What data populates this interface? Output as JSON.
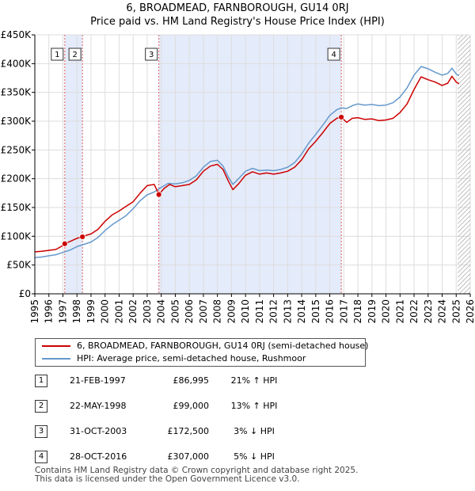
{
  "title": {
    "line1": "6, BROADMEAD, FARNBOROUGH, GU14 0RJ",
    "line2": "Price paid vs. HM Land Registry's House Price Index (HPI)"
  },
  "colors": {
    "price_line": "#cc0000",
    "hpi_line": "#6699cc",
    "shade": "#e4ebfa",
    "grid": "#dddddd",
    "marker_vline": "#e06060",
    "forecast_hatch": "#aaaaaa"
  },
  "chart_data": {
    "type": "line",
    "xlim": [
      1995,
      2026
    ],
    "ylim": [
      0,
      450000
    ],
    "x_ticks": [
      1995,
      1996,
      1997,
      1998,
      1999,
      2000,
      2001,
      2002,
      2003,
      2004,
      2005,
      2006,
      2007,
      2008,
      2009,
      2010,
      2011,
      2012,
      2013,
      2014,
      2015,
      2016,
      2017,
      2018,
      2019,
      2020,
      2021,
      2022,
      2023,
      2024,
      2025,
      2026
    ],
    "y_ticks": [
      {
        "value": 0,
        "label": "£0"
      },
      {
        "value": 50000,
        "label": "£50K"
      },
      {
        "value": 100000,
        "label": "£100K"
      },
      {
        "value": 150000,
        "label": "£150K"
      },
      {
        "value": 200000,
        "label": "£200K"
      },
      {
        "value": 250000,
        "label": "£250K"
      },
      {
        "value": 300000,
        "label": "£300K"
      },
      {
        "value": 350000,
        "label": "£350K"
      },
      {
        "value": 400000,
        "label": "£400K"
      },
      {
        "value": 450000,
        "label": "£450K"
      }
    ],
    "forecast_start": 2025.1,
    "shaded_spans": [
      [
        1997.13,
        1998.39
      ],
      [
        2003.83,
        2016.82
      ]
    ],
    "series": [
      {
        "name": "6, BROADMEAD, FARNBOROUGH, GU14 0RJ (semi-detached house)",
        "points": [
          [
            1995.0,
            73000
          ],
          [
            1995.5,
            74000
          ],
          [
            1996.0,
            75500
          ],
          [
            1996.5,
            77000
          ],
          [
            1997.0,
            84000
          ],
          [
            1997.13,
            86995
          ],
          [
            1997.5,
            91000
          ],
          [
            1998.0,
            96500
          ],
          [
            1998.39,
            99000
          ],
          [
            1998.7,
            102000
          ],
          [
            1999.0,
            104000
          ],
          [
            1999.5,
            112000
          ],
          [
            2000.0,
            126000
          ],
          [
            2000.5,
            137000
          ],
          [
            2001.0,
            144000
          ],
          [
            2001.5,
            152000
          ],
          [
            2002.0,
            160000
          ],
          [
            2002.5,
            175000
          ],
          [
            2003.0,
            188000
          ],
          [
            2003.5,
            190000
          ],
          [
            2003.83,
            172500
          ],
          [
            2004.2,
            183000
          ],
          [
            2004.6,
            190000
          ],
          [
            2005.0,
            186000
          ],
          [
            2005.5,
            188000
          ],
          [
            2006.0,
            190000
          ],
          [
            2006.5,
            198000
          ],
          [
            2007.0,
            213000
          ],
          [
            2007.5,
            222000
          ],
          [
            2008.0,
            225000
          ],
          [
            2008.4,
            216000
          ],
          [
            2008.8,
            195000
          ],
          [
            2009.1,
            181000
          ],
          [
            2009.5,
            191000
          ],
          [
            2010.0,
            206000
          ],
          [
            2010.5,
            212000
          ],
          [
            2011.0,
            208000
          ],
          [
            2011.5,
            210000
          ],
          [
            2012.0,
            208000
          ],
          [
            2012.5,
            210000
          ],
          [
            2013.0,
            213000
          ],
          [
            2013.5,
            220000
          ],
          [
            2014.0,
            233000
          ],
          [
            2014.5,
            252000
          ],
          [
            2015.0,
            265000
          ],
          [
            2015.5,
            280000
          ],
          [
            2016.0,
            296000
          ],
          [
            2016.5,
            305000
          ],
          [
            2016.82,
            307000
          ],
          [
            2017.2,
            298000
          ],
          [
            2017.6,
            305000
          ],
          [
            2018.0,
            306000
          ],
          [
            2018.5,
            303000
          ],
          [
            2019.0,
            304000
          ],
          [
            2019.5,
            301000
          ],
          [
            2020.0,
            302000
          ],
          [
            2020.5,
            305000
          ],
          [
            2021.0,
            315000
          ],
          [
            2021.5,
            330000
          ],
          [
            2022.0,
            355000
          ],
          [
            2022.5,
            377000
          ],
          [
            2023.0,
            372000
          ],
          [
            2023.5,
            368000
          ],
          [
            2024.0,
            362000
          ],
          [
            2024.4,
            366000
          ],
          [
            2024.7,
            378000
          ],
          [
            2025.0,
            368000
          ],
          [
            2025.2,
            365000
          ]
        ]
      },
      {
        "name": "HPI: Average price, semi-detached house, Rushmoor",
        "points": [
          [
            1995.0,
            63000
          ],
          [
            1995.5,
            64000
          ],
          [
            1996.0,
            66000
          ],
          [
            1996.5,
            68000
          ],
          [
            1997.0,
            72000
          ],
          [
            1997.5,
            76000
          ],
          [
            1998.0,
            82000
          ],
          [
            1998.5,
            86000
          ],
          [
            1999.0,
            90000
          ],
          [
            1999.5,
            98000
          ],
          [
            2000.0,
            110000
          ],
          [
            2000.5,
            120000
          ],
          [
            2001.0,
            128000
          ],
          [
            2001.5,
            136000
          ],
          [
            2002.0,
            148000
          ],
          [
            2002.5,
            162000
          ],
          [
            2003.0,
            172000
          ],
          [
            2003.5,
            177000
          ],
          [
            2004.0,
            185000
          ],
          [
            2004.5,
            192000
          ],
          [
            2005.0,
            191000
          ],
          [
            2005.5,
            193000
          ],
          [
            2006.0,
            197000
          ],
          [
            2006.5,
            205000
          ],
          [
            2007.0,
            220000
          ],
          [
            2007.5,
            230000
          ],
          [
            2008.0,
            232000
          ],
          [
            2008.4,
            222000
          ],
          [
            2008.8,
            202000
          ],
          [
            2009.1,
            190000
          ],
          [
            2009.5,
            200000
          ],
          [
            2010.0,
            213000
          ],
          [
            2010.5,
            218000
          ],
          [
            2011.0,
            214000
          ],
          [
            2011.5,
            215000
          ],
          [
            2012.0,
            214000
          ],
          [
            2012.5,
            216000
          ],
          [
            2013.0,
            220000
          ],
          [
            2013.5,
            228000
          ],
          [
            2014.0,
            243000
          ],
          [
            2014.5,
            262000
          ],
          [
            2015.0,
            277000
          ],
          [
            2015.5,
            293000
          ],
          [
            2016.0,
            310000
          ],
          [
            2016.5,
            320000
          ],
          [
            2016.82,
            323000
          ],
          [
            2017.2,
            322000
          ],
          [
            2017.6,
            327000
          ],
          [
            2018.0,
            330000
          ],
          [
            2018.5,
            328000
          ],
          [
            2019.0,
            329000
          ],
          [
            2019.5,
            327000
          ],
          [
            2020.0,
            328000
          ],
          [
            2020.5,
            332000
          ],
          [
            2021.0,
            342000
          ],
          [
            2021.5,
            358000
          ],
          [
            2022.0,
            380000
          ],
          [
            2022.5,
            395000
          ],
          [
            2023.0,
            391000
          ],
          [
            2023.5,
            385000
          ],
          [
            2024.0,
            380000
          ],
          [
            2024.4,
            383000
          ],
          [
            2024.7,
            392000
          ],
          [
            2025.0,
            382000
          ],
          [
            2025.2,
            379000
          ]
        ]
      }
    ],
    "sales": [
      {
        "num": "1",
        "x": 1997.13,
        "price": 86995
      },
      {
        "num": "2",
        "x": 1998.39,
        "price": 99000
      },
      {
        "num": "3",
        "x": 2003.83,
        "price": 172500
      },
      {
        "num": "4",
        "x": 2016.82,
        "price": 307000
      }
    ]
  },
  "legend": {
    "price_label": "6, BROADMEAD, FARNBOROUGH, GU14 0RJ (semi-detached house)",
    "hpi_label": "HPI: Average price, semi-detached house, Rushmoor"
  },
  "sales_table": [
    {
      "num": "1",
      "date": "21-FEB-1997",
      "price": "£86,995",
      "hpi": "21% ↑ HPI"
    },
    {
      "num": "2",
      "date": "22-MAY-1998",
      "price": "£99,000",
      "hpi": "13% ↑ HPI"
    },
    {
      "num": "3",
      "date": "31-OCT-2003",
      "price": "£172,500",
      "hpi": "3% ↓ HPI"
    },
    {
      "num": "4",
      "date": "28-OCT-2016",
      "price": "£307,000",
      "hpi": "5% ↓ HPI"
    }
  ],
  "footer": {
    "line1": "Contains HM Land Registry data © Crown copyright and database right 2025.",
    "line2": "This data is licensed under the Open Government Licence v3.0."
  }
}
